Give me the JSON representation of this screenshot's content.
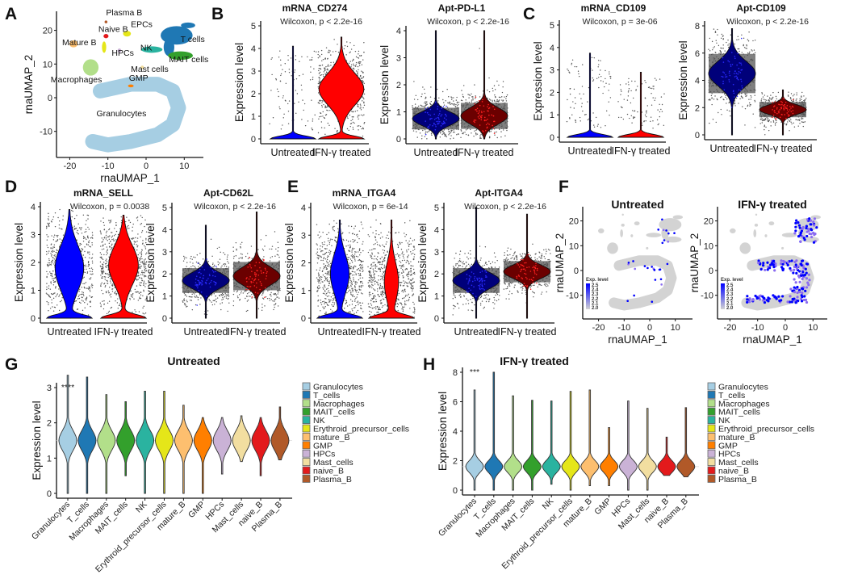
{
  "panel_labels": [
    "A",
    "B",
    "C",
    "D",
    "E",
    "F",
    "G",
    "H"
  ],
  "chart_data": [
    {
      "id": "A",
      "type": "scatter",
      "xlabel": "rnaUMAP_1",
      "ylabel": "rnaUMAP_2",
      "xticks": [
        -20,
        -10,
        0,
        10
      ],
      "yticks": [
        -10,
        0,
        10,
        20
      ],
      "clusters": [
        {
          "name": "Plasma B",
          "color": "#b15928"
        },
        {
          "name": "Naive B",
          "color": "#e31a1c"
        },
        {
          "name": "EPCs",
          "color": "#e5e619"
        },
        {
          "name": "Mature B",
          "color": "#fdbf6f"
        },
        {
          "name": "HPCs",
          "color": "#cab2d6"
        },
        {
          "name": "NK",
          "color": "#2ab3a0"
        },
        {
          "name": "T cells",
          "color": "#1f78b4"
        },
        {
          "name": "MAIT cells",
          "color": "#33a02c"
        },
        {
          "name": "Mast cells",
          "color": "#f2dea0"
        },
        {
          "name": "Macrophages",
          "color": "#b2df8a"
        },
        {
          "name": "GMP",
          "color": "#ff7f00"
        },
        {
          "name": "Granulocytes",
          "color": "#a6cee3"
        }
      ]
    },
    {
      "id": "B1",
      "type": "violin",
      "title": "mRNA_CD274",
      "subtitle": "Wilcoxon, p < 2.2e-16",
      "ylabel": "Expression level",
      "yticks": [
        0,
        1,
        2,
        3,
        4,
        5
      ],
      "categories": [
        "Untreated",
        "IFN-γ treated"
      ],
      "violins": [
        {
          "center": 0,
          "sd": 0.3,
          "zero_fraction": 1,
          "min": 0,
          "max": 4.1,
          "fill": "#0000ff"
        },
        {
          "center": 2.2,
          "sd": 0.7,
          "zero_fraction": 0.5,
          "min": 0,
          "max": 4.5,
          "fill": "#ff0000"
        }
      ]
    },
    {
      "id": "B2",
      "type": "violin",
      "title": "Apt-PD-L1",
      "subtitle": "Wilcoxon, p < 2.2e-16",
      "ylabel": "Expression level",
      "yticks": [
        0,
        1,
        2,
        3,
        4
      ],
      "categories": [
        "Untreated",
        "IFN-γ treated"
      ],
      "violins": [
        {
          "center": 0.75,
          "sd": 0.25,
          "zero_fraction": 0,
          "min": 0,
          "max": 4,
          "fill": "#00007a"
        },
        {
          "center": 0.85,
          "sd": 0.3,
          "zero_fraction": 0,
          "min": 0,
          "max": 4,
          "fill": "#6b0000"
        }
      ]
    },
    {
      "id": "C1",
      "type": "violin",
      "title": "mRNA_CD109",
      "subtitle": "Wilcoxon, p = 3e-06",
      "ylabel": "Expression level",
      "yticks": [
        0,
        1,
        2,
        3,
        4,
        5
      ],
      "categories": [
        "Untreated",
        "IFN-γ treated"
      ],
      "violins": [
        {
          "center": 0,
          "sd": 0.3,
          "zero_fraction": 1,
          "min": 0,
          "max": 3.75,
          "fill": "#0000ff"
        },
        {
          "center": 0,
          "sd": 0.3,
          "zero_fraction": 1,
          "min": 0,
          "max": 2.9,
          "fill": "#ff0000"
        }
      ]
    },
    {
      "id": "C2",
      "type": "violin",
      "title": "Apt-CD109",
      "subtitle": "Wilcoxon, p < 2.2e-16",
      "ylabel": "Expression level",
      "yticks": [
        0,
        2,
        4,
        6,
        8
      ],
      "categories": [
        "Untreated",
        "IFN-γ treated"
      ],
      "violins": [
        {
          "center": 4.5,
          "sd": 0.9,
          "zero_fraction": 0,
          "min": 0,
          "max": 7.8,
          "fill": "#00007a"
        },
        {
          "center": 1.85,
          "sd": 0.35,
          "zero_fraction": 0,
          "min": 0,
          "max": 3.3,
          "fill": "#6b0000"
        }
      ]
    },
    {
      "id": "D1",
      "type": "violin",
      "title": "mRNA_SELL",
      "subtitle": "Wilcoxon, p = 0.0038",
      "ylabel": "Expression level",
      "yticks": [
        0,
        1,
        2,
        3,
        4
      ],
      "categories": [
        "Untreated",
        "IFN-γ treated"
      ],
      "violins": [
        {
          "center": 1.8,
          "sd": 0.8,
          "zero_fraction": 0.6,
          "min": 0,
          "max": 3.9,
          "fill": "#0000ff"
        },
        {
          "center": 1.9,
          "sd": 0.7,
          "zero_fraction": 0.6,
          "min": 0,
          "max": 3.7,
          "fill": "#ff0000"
        }
      ]
    },
    {
      "id": "D2",
      "type": "violin",
      "title": "Apt-CD62L",
      "subtitle": "Wilcoxon, p < 2.2e-16",
      "ylabel": "Expression level",
      "yticks": [
        0,
        1,
        2,
        3,
        4,
        5
      ],
      "categories": [
        "Untreated",
        "IFN-γ treated"
      ],
      "violins": [
        {
          "center": 1.7,
          "sd": 0.35,
          "zero_fraction": 0,
          "min": 0,
          "max": 4.2,
          "fill": "#00007a"
        },
        {
          "center": 1.9,
          "sd": 0.4,
          "zero_fraction": 0,
          "min": 0,
          "max": 4.8,
          "fill": "#6b0000"
        }
      ]
    },
    {
      "id": "E1",
      "type": "violin",
      "title": "mRNA_ITGA4",
      "subtitle": "Wilcoxon, p = 6e-14",
      "ylabel": "Expression level",
      "yticks": [
        0,
        1,
        2,
        3,
        4
      ],
      "categories": [
        "Untreated",
        "IFN-γ treated"
      ],
      "violins": [
        {
          "center": 1.6,
          "sd": 0.7,
          "zero_fraction": 0.7,
          "min": 0,
          "max": 3.55,
          "fill": "#0000ff"
        },
        {
          "center": 1.3,
          "sd": 0.7,
          "zero_fraction": 0.75,
          "min": 0,
          "max": 3.55,
          "fill": "#ff0000"
        }
      ]
    },
    {
      "id": "E2",
      "type": "violin",
      "title": "Apt-ITGA4",
      "subtitle": "Wilcoxon, p < 2.2e-16",
      "ylabel": "Expression level",
      "yticks": [
        0,
        1,
        2,
        3,
        4,
        5
      ],
      "categories": [
        "Untreated",
        "IFN-γ treated"
      ],
      "violins": [
        {
          "center": 1.7,
          "sd": 0.35,
          "zero_fraction": 0,
          "min": 0,
          "max": 5,
          "fill": "#00007a"
        },
        {
          "center": 2.1,
          "sd": 0.3,
          "zero_fraction": 0,
          "min": 0,
          "max": 4.7,
          "fill": "#6b0000"
        }
      ]
    },
    {
      "id": "F1",
      "type": "scatter",
      "title": "Untreated",
      "xlabel": "rnaUMAP_1",
      "ylabel": "rnaUMAP_2",
      "xticks": [
        -20,
        -10,
        0,
        10
      ],
      "yticks": [
        -10,
        0,
        10,
        20
      ],
      "legend_title": "Exp. level",
      "legend_ticks": [
        "2.5",
        "2.4",
        "2.3",
        "2.2",
        "2.1",
        "2.0"
      ],
      "high_color": "#0000ff",
      "low_color": "#d3d3d3"
    },
    {
      "id": "F2",
      "type": "scatter",
      "title": "IFN-γ treated",
      "xlabel": "rnaUMAP_1",
      "ylabel": "rnaUMAP_2",
      "xticks": [
        -20,
        -10,
        0,
        10
      ],
      "yticks": [
        -10,
        0,
        10,
        20
      ],
      "legend_title": "Exp. level",
      "legend_ticks": [
        "2.5",
        "2.4",
        "2.3",
        "2.2",
        "2.1",
        "2.0"
      ],
      "high_color": "#0000ff",
      "low_color": "#d3d3d3"
    },
    {
      "id": "G",
      "type": "violin",
      "title": "Untreated",
      "ylabel": "Expression level",
      "yticks": [
        0,
        1,
        2,
        3
      ],
      "annotation": "****",
      "categories": [
        "Granulocytes",
        "T_cells",
        "Macrophages",
        "MAIT_cells",
        "NK",
        "Erythroid_precursor_cells",
        "mature_B",
        "GMP",
        "HPCs",
        "Mast_cells",
        "naive_B",
        "Plasma_B"
      ],
      "colors": [
        "#a6cee3",
        "#1f78b4",
        "#b2df8a",
        "#33a02c",
        "#2ab3a0",
        "#e5e619",
        "#fdbf6f",
        "#ff7f00",
        "#cab2d6",
        "#f2dea0",
        "#e31a1c",
        "#b15928"
      ],
      "mins": [
        0,
        0,
        0,
        0.5,
        0,
        0,
        0,
        0,
        0.55,
        0.9,
        0.5,
        0.95
      ],
      "maxs": [
        3.35,
        3.3,
        2.8,
        2.6,
        2.9,
        2.9,
        2.5,
        2.15,
        2.15,
        2.2,
        2.15,
        2.45
      ],
      "center": 1.5
    },
    {
      "id": "H",
      "type": "violin",
      "title": "IFN-γ treated",
      "ylabel": "Expression level",
      "yticks": [
        0,
        2,
        4,
        6,
        8
      ],
      "annotation": "***",
      "categories": [
        "Granulocytes",
        "T_cells",
        "Macrophages",
        "MAIT_cells",
        "NK",
        "Erythroid_precursor_cells",
        "mature_B",
        "GMP",
        "HPCs",
        "Mast_cells",
        "naive_B",
        "Plasma_B"
      ],
      "colors": [
        "#a6cee3",
        "#1f78b4",
        "#b2df8a",
        "#33a02c",
        "#2ab3a0",
        "#e5e619",
        "#fdbf6f",
        "#ff7f00",
        "#cab2d6",
        "#f2dea0",
        "#e31a1c",
        "#b15928"
      ],
      "mins": [
        0,
        0,
        0,
        0,
        0.4,
        0,
        0.3,
        0.3,
        0,
        0,
        1,
        0.9
      ],
      "maxs": [
        6.8,
        8,
        6.4,
        6.1,
        6.05,
        6.7,
        6.8,
        4.25,
        6.05,
        5.55,
        3.6,
        5.6
      ],
      "center": 1.6
    }
  ]
}
